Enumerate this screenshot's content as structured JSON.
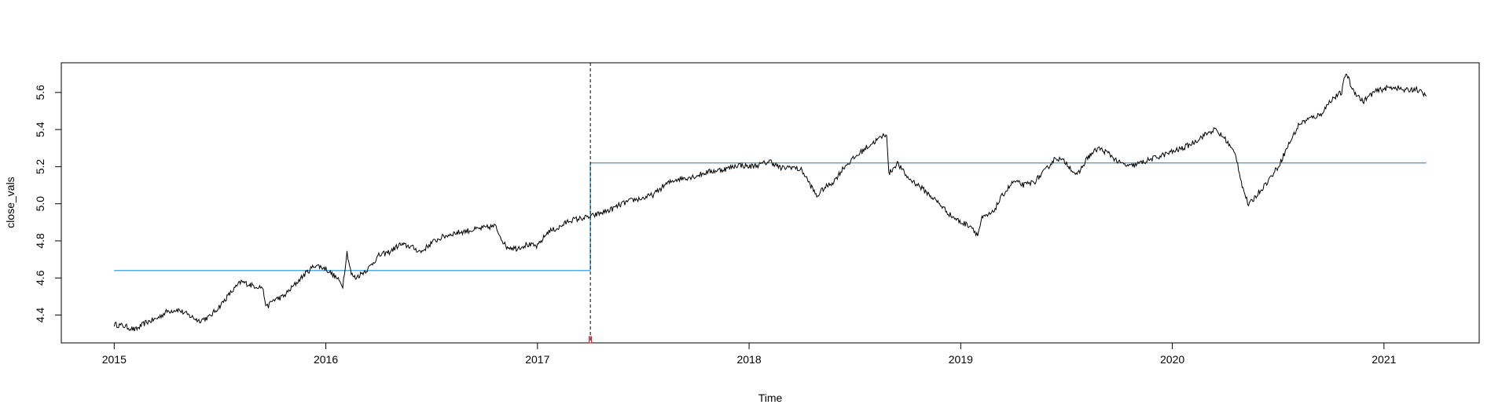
{
  "chart_data": {
    "type": "line",
    "title": "",
    "xlabel": "Time",
    "ylabel": "close_vals",
    "xlim": [
      2014.75,
      2021.45
    ],
    "ylim": [
      4.25,
      5.76
    ],
    "x_ticks": [
      2015,
      2016,
      2017,
      2018,
      2019,
      2020,
      2021
    ],
    "x_tick_labels": [
      "2015",
      "2016",
      "2017",
      "2018",
      "2019",
      "2020",
      "2021"
    ],
    "y_ticks": [
      4.4,
      4.6,
      4.8,
      5.0,
      5.2,
      5.4,
      5.6
    ],
    "y_tick_labels": [
      "4.4",
      "4.6",
      "4.8",
      "5.0",
      "5.2",
      "5.4",
      "5.6"
    ],
    "grid": false,
    "legend": "none",
    "changepoint": 2017.25,
    "colors": {
      "series": "#000000",
      "mean_line": "#1f8fd6",
      "changepoint_line": "#000000",
      "changepoint_marker": "#e0001b"
    },
    "series": [
      {
        "x": [
          2015.0,
          2015.05,
          2015.1,
          2015.15,
          2015.2,
          2015.25,
          2015.3,
          2015.35,
          2015.4,
          2015.45,
          2015.5,
          2015.55,
          2015.6,
          2015.65,
          2015.7,
          2015.72,
          2015.75,
          2015.8,
          2015.85,
          2015.9,
          2015.95,
          2016.0,
          2016.05,
          2016.08,
          2016.1,
          2016.12,
          2016.14,
          2016.2,
          2016.25,
          2016.3,
          2016.35,
          2016.4,
          2016.45,
          2016.5,
          2016.55,
          2016.6,
          2016.65,
          2016.7,
          2016.75,
          2016.8,
          2016.85,
          2016.9,
          2016.95,
          2017.0,
          2017.05,
          2017.1,
          2017.15,
          2017.2,
          2017.25,
          2017.3,
          2017.35,
          2017.4,
          2017.45,
          2017.5,
          2017.55,
          2017.6,
          2017.65,
          2017.7,
          2017.75,
          2017.8,
          2017.85,
          2017.9,
          2017.95,
          2018.0,
          2018.05,
          2018.1,
          2018.15,
          2018.2,
          2018.25,
          2018.3,
          2018.32,
          2018.35,
          2018.4,
          2018.45,
          2018.5,
          2018.55,
          2018.6,
          2018.65,
          2018.66,
          2018.7,
          2018.75,
          2018.8,
          2018.85,
          2018.9,
          2018.95,
          2019.0,
          2019.05,
          2019.08,
          2019.1,
          2019.15,
          2019.2,
          2019.25,
          2019.3,
          2019.35,
          2019.4,
          2019.45,
          2019.5,
          2019.55,
          2019.6,
          2019.65,
          2019.7,
          2019.75,
          2019.8,
          2019.85,
          2019.9,
          2019.95,
          2020.0,
          2020.05,
          2020.1,
          2020.15,
          2020.2,
          2020.25,
          2020.3,
          2020.33,
          2020.36,
          2020.4,
          2020.45,
          2020.5,
          2020.55,
          2020.6,
          2020.65,
          2020.7,
          2020.75,
          2020.8,
          2020.82,
          2020.85,
          2020.9,
          2020.95,
          2021.0,
          2021.05,
          2021.1,
          2021.15,
          2021.2
        ],
        "y": [
          4.35,
          4.34,
          4.32,
          4.36,
          4.38,
          4.42,
          4.43,
          4.4,
          4.37,
          4.39,
          4.45,
          4.52,
          4.58,
          4.56,
          4.55,
          4.44,
          4.48,
          4.5,
          4.56,
          4.62,
          4.67,
          4.65,
          4.6,
          4.56,
          4.74,
          4.62,
          4.6,
          4.65,
          4.72,
          4.74,
          4.78,
          4.77,
          4.74,
          4.79,
          4.82,
          4.84,
          4.85,
          4.86,
          4.87,
          4.88,
          4.77,
          4.76,
          4.78,
          4.77,
          4.85,
          4.87,
          4.91,
          4.92,
          4.93,
          4.95,
          4.97,
          5.0,
          5.02,
          5.03,
          5.05,
          5.1,
          5.13,
          5.14,
          5.15,
          5.17,
          5.18,
          5.19,
          5.21,
          5.2,
          5.21,
          5.23,
          5.19,
          5.2,
          5.18,
          5.08,
          5.04,
          5.08,
          5.12,
          5.2,
          5.25,
          5.3,
          5.34,
          5.38,
          5.16,
          5.22,
          5.14,
          5.1,
          5.05,
          5.0,
          4.94,
          4.9,
          4.88,
          4.83,
          4.92,
          4.95,
          5.05,
          5.12,
          5.1,
          5.12,
          5.18,
          5.25,
          5.22,
          5.15,
          5.25,
          5.3,
          5.27,
          5.22,
          5.2,
          5.22,
          5.24,
          5.26,
          5.28,
          5.3,
          5.33,
          5.37,
          5.4,
          5.35,
          5.26,
          5.1,
          4.99,
          5.05,
          5.12,
          5.2,
          5.32,
          5.43,
          5.46,
          5.48,
          5.56,
          5.6,
          5.71,
          5.62,
          5.55,
          5.6,
          5.62,
          5.63,
          5.61,
          5.62,
          5.58
        ],
        "segment_means": [
          {
            "x_start": 2015.0,
            "x_end": 2017.25,
            "y": 4.64
          },
          {
            "x_start": 2017.25,
            "x_end": 2021.2,
            "y": 5.22
          }
        ]
      }
    ]
  }
}
